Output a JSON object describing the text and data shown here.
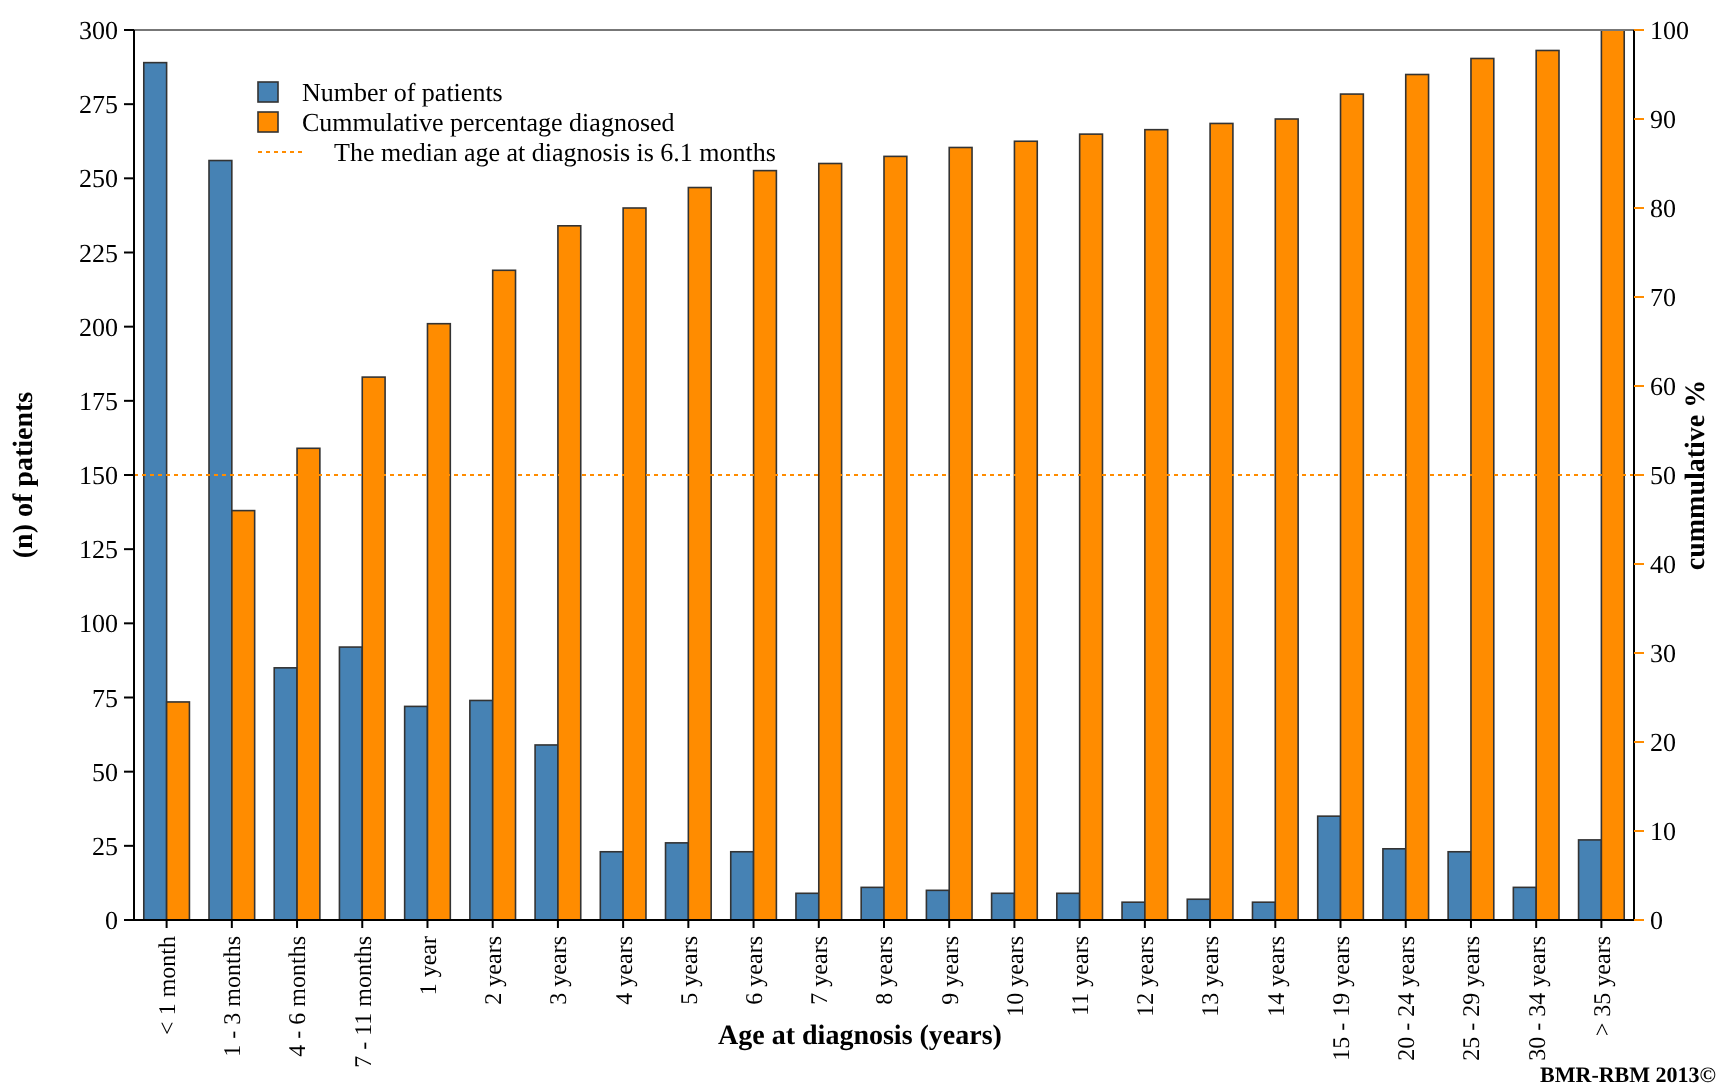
{
  "chart_data": {
    "type": "bar",
    "xlabel": "Age at diagnosis (years)",
    "ylabel": "(n) of patients",
    "y2label": "cummulative %",
    "categories": [
      "< 1 month",
      "1 - 3 months",
      "4 - 6 months",
      "7 - 11 months",
      "1 year",
      "2 years",
      "3 years",
      "4 years",
      "5 years",
      "6 years",
      "7 years",
      "8 years",
      "9 years",
      "10 years",
      "11 years",
      "12 years",
      "13 years",
      "14 years",
      "15 - 19 years",
      "20 - 24 years",
      "25 - 29 years",
      "30 - 34 years",
      "> 35 years"
    ],
    "series": [
      {
        "name": "Number of patients",
        "color": "#4682b4",
        "values": [
          289,
          256,
          85,
          92,
          72,
          74,
          59,
          23,
          26,
          23,
          9,
          11,
          10,
          9,
          9,
          6,
          7,
          6,
          35,
          24,
          23,
          11,
          27
        ]
      },
      {
        "name": "Cummulative percentage diagnosed",
        "color": "#ff8c00",
        "axis": "y2",
        "values": [
          24.5,
          46,
          53,
          61,
          67,
          73,
          78,
          80,
          82.3,
          84.2,
          85,
          85.8,
          86.8,
          87.5,
          88.3,
          88.8,
          89.5,
          90,
          92.8,
          95,
          96.8,
          97.7,
          100
        ]
      }
    ],
    "ylim": [
      0,
      300
    ],
    "yticks": [
      0,
      25,
      50,
      75,
      100,
      125,
      150,
      175,
      200,
      225,
      250,
      275,
      300
    ],
    "y2lim": [
      0,
      100
    ],
    "y2ticks": [
      0,
      10,
      20,
      30,
      40,
      50,
      60,
      70,
      80,
      90,
      100
    ],
    "ref_lines": [
      {
        "axis": "y2",
        "value": 50,
        "label": "The median age at diagnosis is 6.1 months",
        "color": "#ff8c00",
        "line_style": "dotted"
      }
    ],
    "legend": "top left",
    "annotations": [
      "BMR-RBM 2013©"
    ]
  }
}
